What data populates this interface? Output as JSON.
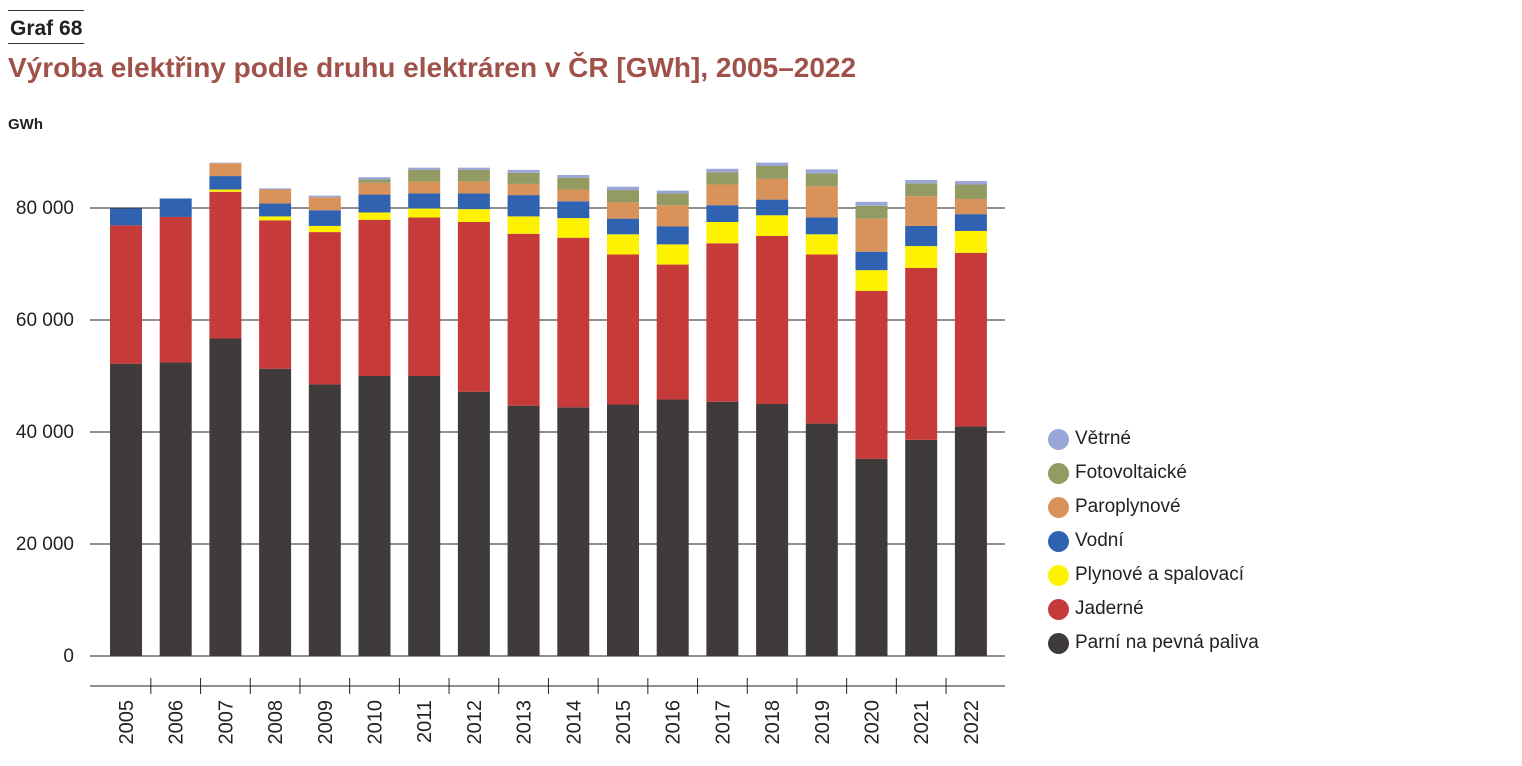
{
  "figure": {
    "label": "Graf 68",
    "title": "Výroba elektřiny podle druhu elektráren v ČR [GWh], 2005–2022"
  },
  "chart_data": {
    "type": "bar",
    "stacked": true,
    "ylabel": "GWh",
    "ylim": [
      0,
      90000
    ],
    "yticks": [
      0,
      20000,
      40000,
      60000,
      80000
    ],
    "ytick_labels": [
      "0",
      "20 000",
      "40 000",
      "60 000",
      "80 000"
    ],
    "grid": true,
    "legend_position": "right",
    "categories": [
      "2005",
      "2006",
      "2007",
      "2008",
      "2009",
      "2010",
      "2011",
      "2012",
      "2013",
      "2014",
      "2015",
      "2016",
      "2017",
      "2018",
      "2019",
      "2020",
      "2021",
      "2022"
    ],
    "series": [
      {
        "name": "Parní na pevná paliva",
        "color": "#403b3b",
        "values": [
          52200,
          52400,
          56700,
          51300,
          48500,
          50000,
          50000,
          47200,
          44700,
          44400,
          44900,
          45800,
          45400,
          45000,
          41500,
          35200,
          38600,
          41000
        ]
      },
      {
        "name": "Jaderné",
        "color": "#c73a3a",
        "values": [
          24700,
          26000,
          26200,
          26500,
          27200,
          27900,
          28300,
          30300,
          30700,
          30300,
          26800,
          24100,
          28300,
          30000,
          30200,
          30000,
          30700,
          31000
        ]
      },
      {
        "name": "Plynové a spalovací",
        "color": "#fff200",
        "values": [
          0,
          0,
          400,
          700,
          1100,
          1300,
          1600,
          2300,
          3100,
          3500,
          3600,
          3600,
          3800,
          3700,
          3600,
          3700,
          3900,
          3900
        ]
      },
      {
        "name": "Vodní",
        "color": "#2f62b0",
        "values": [
          3000,
          3300,
          2400,
          2300,
          2800,
          3200,
          2700,
          2800,
          3800,
          3000,
          2800,
          3200,
          3000,
          2800,
          3000,
          3300,
          3600,
          3000
        ]
      },
      {
        "name": "Paroplynové",
        "color": "#d9935a",
        "values": [
          0,
          0,
          2300,
          2500,
          2300,
          2100,
          2100,
          2100,
          2000,
          2100,
          2900,
          3800,
          3700,
          3700,
          5600,
          5900,
          5300,
          2700
        ]
      },
      {
        "name": "Fotovoltaické",
        "color": "#939a62",
        "values": [
          0,
          0,
          0,
          0,
          0,
          600,
          2100,
          2100,
          2000,
          2100,
          2200,
          2100,
          2200,
          2300,
          2300,
          2300,
          2300,
          2600
        ]
      },
      {
        "name": "Větrné",
        "color": "#9aa5d8",
        "values": [
          0,
          0,
          100,
          200,
          300,
          400,
          400,
          400,
          500,
          500,
          600,
          500,
          600,
          600,
          700,
          700,
          600,
          600
        ]
      }
    ]
  }
}
